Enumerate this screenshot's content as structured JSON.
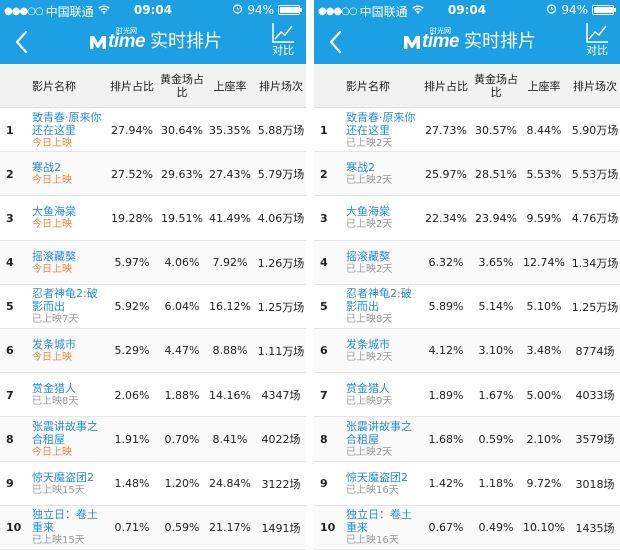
{
  "status_bar": {
    "carrier": "中国联通",
    "time": "09:04",
    "battery_text": "94%",
    "battery_level": 0.94
  },
  "navbar": {
    "logo_text": "time",
    "logo_small_text": "时光网",
    "title": "实时排片",
    "compare_label": "对比"
  },
  "colors": {
    "header_blue": "#1d9fe3",
    "movie_link": "#2b8fd6",
    "today_orange": "#f0863a",
    "past_gray": "#9a9a9a"
  },
  "columns": {
    "name": "影片名称",
    "schedule_share": "排片占比",
    "prime_share": "黄金场占比",
    "occupancy": "上座率",
    "schedule_count": "排片场次"
  },
  "panels": [
    {
      "rows": [
        {
          "rank": "1",
          "title": "致青春·原来你还在这里",
          "status": "今日上映",
          "schedule_share": "27.94%",
          "prime_share": "30.64%",
          "occupancy": "35.35%",
          "count": "5.88万场"
        },
        {
          "rank": "2",
          "title": "寒战2",
          "status": "今日上映",
          "schedule_share": "27.52%",
          "prime_share": "29.63%",
          "occupancy": "27.43%",
          "count": "5.79万场"
        },
        {
          "rank": "3",
          "title": "大鱼海棠",
          "status": "今日上映",
          "schedule_share": "19.28%",
          "prime_share": "19.51%",
          "occupancy": "41.49%",
          "count": "4.06万场"
        },
        {
          "rank": "4",
          "title": "摇滚藏獒",
          "status": "今日上映",
          "schedule_share": "5.97%",
          "prime_share": "4.06%",
          "occupancy": "7.92%",
          "count": "1.26万场"
        },
        {
          "rank": "5",
          "title": "忍者神龟2:破影而出",
          "status": "已上映7天",
          "schedule_share": "5.92%",
          "prime_share": "6.04%",
          "occupancy": "16.12%",
          "count": "1.25万场"
        },
        {
          "rank": "6",
          "title": "发条城市",
          "status": "今日上映",
          "schedule_share": "5.29%",
          "prime_share": "4.47%",
          "occupancy": "8.88%",
          "count": "1.11万场"
        },
        {
          "rank": "7",
          "title": "赏金猎人",
          "status": "已上映8天",
          "schedule_share": "2.06%",
          "prime_share": "1.88%",
          "occupancy": "14.16%",
          "count": "4347场"
        },
        {
          "rank": "8",
          "title": "张震讲故事之合租屋",
          "status": "今日上映",
          "schedule_share": "1.91%",
          "prime_share": "0.70%",
          "occupancy": "8.41%",
          "count": "4022场"
        },
        {
          "rank": "9",
          "title": "惊天魔盗团2",
          "status": "已上映15天",
          "schedule_share": "1.48%",
          "prime_share": "1.20%",
          "occupancy": "24.84%",
          "count": "3122场"
        },
        {
          "rank": "10",
          "title": "独立日：卷土重来",
          "status": "已上映15天",
          "schedule_share": "0.71%",
          "prime_share": "0.59%",
          "occupancy": "21.17%",
          "count": "1491场"
        }
      ]
    },
    {
      "rows": [
        {
          "rank": "1",
          "title": "致青春·原来你还在这里",
          "status": "已上映2天",
          "schedule_share": "27.73%",
          "prime_share": "30.57%",
          "occupancy": "8.44%",
          "count": "5.90万场"
        },
        {
          "rank": "2",
          "title": "寒战2",
          "status": "已上映2天",
          "schedule_share": "25.97%",
          "prime_share": "28.51%",
          "occupancy": "5.53%",
          "count": "5.53万场"
        },
        {
          "rank": "3",
          "title": "大鱼海棠",
          "status": "已上映2天",
          "schedule_share": "22.34%",
          "prime_share": "23.94%",
          "occupancy": "9.59%",
          "count": "4.76万场"
        },
        {
          "rank": "4",
          "title": "摇滚藏獒",
          "status": "已上映2天",
          "schedule_share": "6.32%",
          "prime_share": "3.65%",
          "occupancy": "12.74%",
          "count": "1.34万场"
        },
        {
          "rank": "5",
          "title": "忍者神龟2:破影而出",
          "status": "已上映8天",
          "schedule_share": "5.89%",
          "prime_share": "5.14%",
          "occupancy": "5.10%",
          "count": "1.25万场"
        },
        {
          "rank": "6",
          "title": "发条城市",
          "status": "已上映2天",
          "schedule_share": "4.12%",
          "prime_share": "3.10%",
          "occupancy": "3.48%",
          "count": "8774场"
        },
        {
          "rank": "7",
          "title": "赏金猎人",
          "status": "已上映9天",
          "schedule_share": "1.89%",
          "prime_share": "1.67%",
          "occupancy": "5.00%",
          "count": "4033场"
        },
        {
          "rank": "8",
          "title": "张震讲故事之合租屋",
          "status": "已上映2天",
          "schedule_share": "1.68%",
          "prime_share": "0.59%",
          "occupancy": "2.10%",
          "count": "3579场"
        },
        {
          "rank": "9",
          "title": "惊天魔盗团2",
          "status": "已上映16天",
          "schedule_share": "1.42%",
          "prime_share": "1.18%",
          "occupancy": "9.72%",
          "count": "3018场"
        },
        {
          "rank": "10",
          "title": "独立日：卷土重来",
          "status": "已上映16天",
          "schedule_share": "0.67%",
          "prime_share": "0.49%",
          "occupancy": "10.10%",
          "count": "1435场"
        }
      ]
    }
  ]
}
